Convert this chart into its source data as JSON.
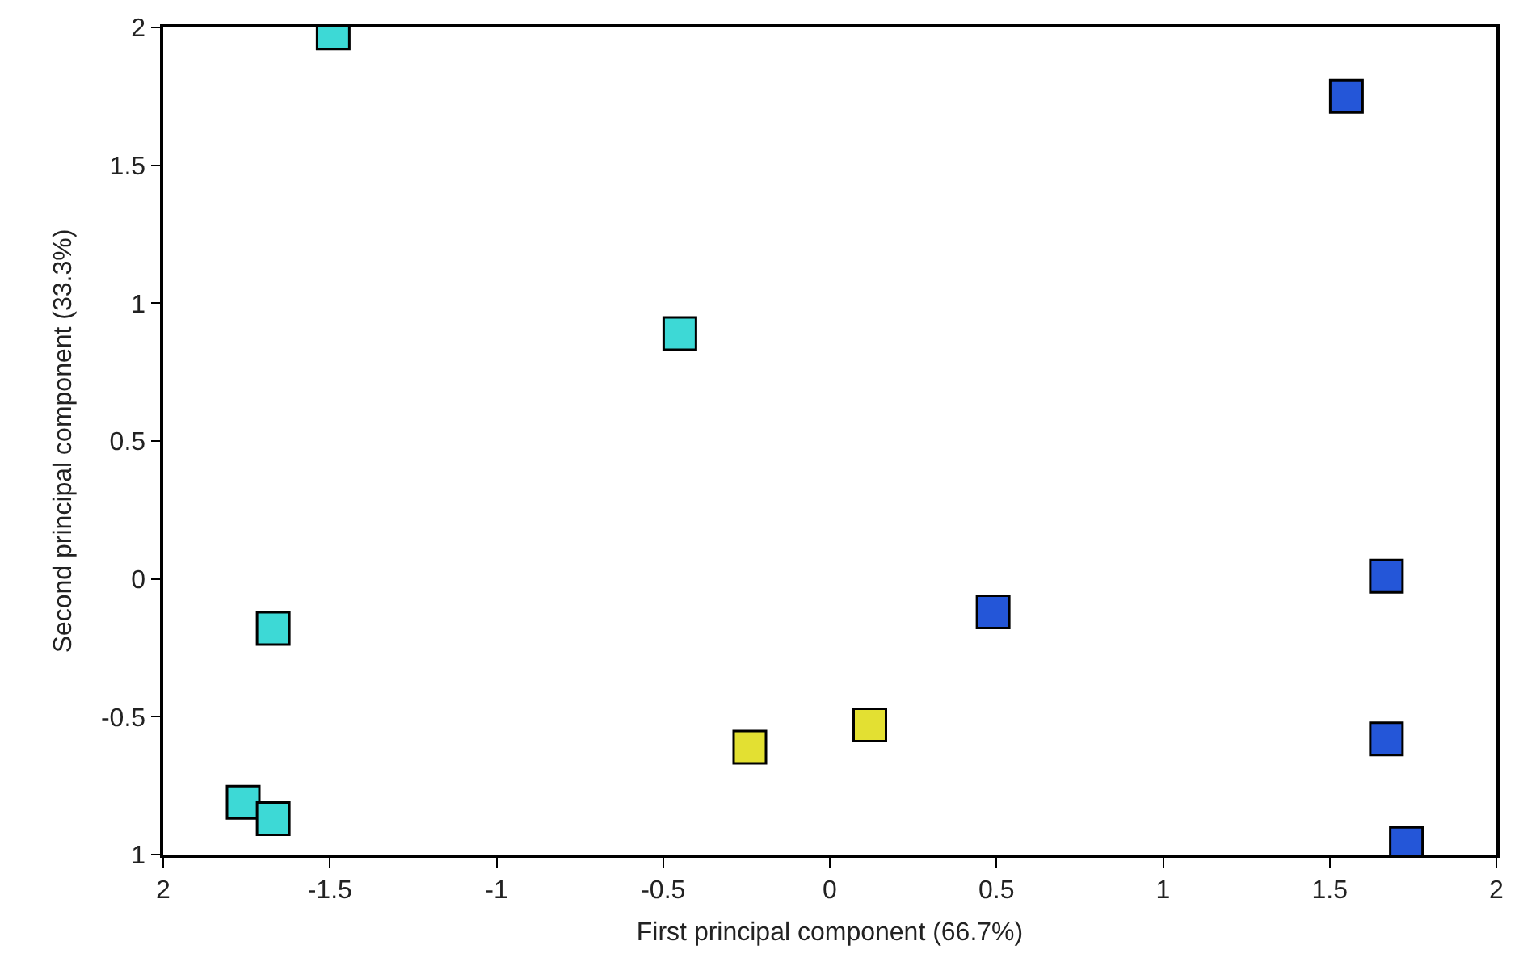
{
  "chart_data": {
    "type": "scatter",
    "xlabel": "First principal component (66.7%)",
    "ylabel": "Second principal component (33.3%)",
    "xlim": [
      -2,
      2
    ],
    "ylim": [
      -1,
      2
    ],
    "xticks": [
      {
        "value": -2,
        "label": "2"
      },
      -1.5,
      -1,
      -0.5,
      0,
      0.5,
      1,
      1.5,
      2
    ],
    "yticks": [
      {
        "value": -1,
        "label": "1"
      },
      -0.5,
      0,
      0.5,
      1,
      1.5,
      {
        "value": 2,
        "label": "2"
      }
    ],
    "series": [
      {
        "color": "#3dd9d6",
        "x": [
          -1.49,
          -0.45,
          -1.67,
          -1.76,
          -1.67
        ],
        "values": [
          1.98,
          0.89,
          -0.18,
          -0.81,
          -0.87
        ]
      },
      {
        "color": "#e3e032",
        "x": [
          -0.24,
          0.12
        ],
        "values": [
          -0.61,
          -0.53
        ]
      },
      {
        "color": "#2456d8",
        "x": [
          1.55,
          1.67,
          0.49,
          1.67,
          1.73
        ],
        "values": [
          1.75,
          0.01,
          -0.12,
          -0.58,
          -0.96
        ]
      }
    ],
    "marker": "square"
  }
}
